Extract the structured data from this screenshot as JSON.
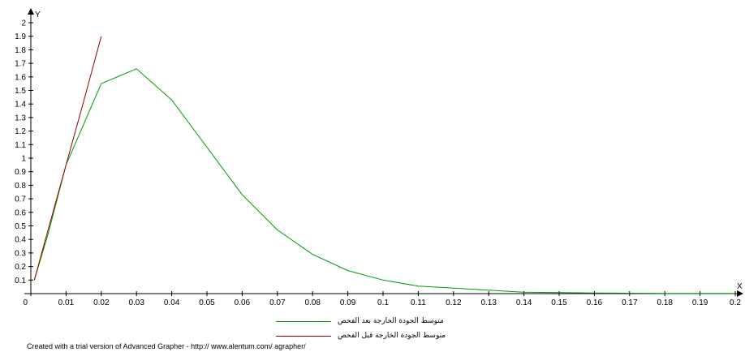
{
  "chart_data": {
    "type": "line",
    "xlabel": "X",
    "ylabel": "Y",
    "xlim": [
      0,
      0.2
    ],
    "ylim": [
      0,
      2
    ],
    "x_ticks": [
      "0",
      "0.01",
      "0.02",
      "0.03",
      "0.04",
      "0.05",
      "0.06",
      "0.07",
      "0.08",
      "0.09",
      "0.1",
      "0.11",
      "0.12",
      "0.13",
      "0.14",
      "0.15",
      "0.16",
      "0.17",
      "0.18",
      "0.19",
      "0.2"
    ],
    "y_ticks": [
      "0.1",
      "0.2",
      "0.3",
      "0.4",
      "0.5",
      "0.6",
      "0.7",
      "0.8",
      "0.9",
      "1",
      "1.1",
      "1.2",
      "1.3",
      "1.4",
      "1.5",
      "1.6",
      "1.7",
      "1.8",
      "1.9",
      "2"
    ],
    "grid": false,
    "legend_position": "bottom-center",
    "series": [
      {
        "name": "متوسط الجودة الخارجة بعد الفحص",
        "color": "#009900",
        "x": [
          0.001,
          0.005,
          0.01,
          0.02,
          0.03,
          0.04,
          0.05,
          0.06,
          0.07,
          0.08,
          0.09,
          0.1,
          0.11,
          0.12,
          0.13,
          0.14,
          0.15,
          0.16,
          0.17,
          0.18,
          0.19,
          0.2
        ],
        "y": [
          0.1,
          0.45,
          0.95,
          1.55,
          1.66,
          1.43,
          1.08,
          0.73,
          0.47,
          0.29,
          0.17,
          0.1,
          0.055,
          0.04,
          0.025,
          0.01,
          0.008,
          0.005,
          0.003,
          0.002,
          0.001,
          0.001
        ]
      },
      {
        "name": "متوسط الجودة الخارجة قبل الفحص",
        "color": "#990000",
        "x": [
          0.001,
          0.005,
          0.01,
          0.015,
          0.02
        ],
        "y": [
          0.1,
          0.48,
          0.95,
          1.42,
          1.9
        ]
      }
    ]
  },
  "footer": {
    "text": "Created with a trial version of Advanced Grapher - http:// www.alentum.com/ agrapher/"
  }
}
